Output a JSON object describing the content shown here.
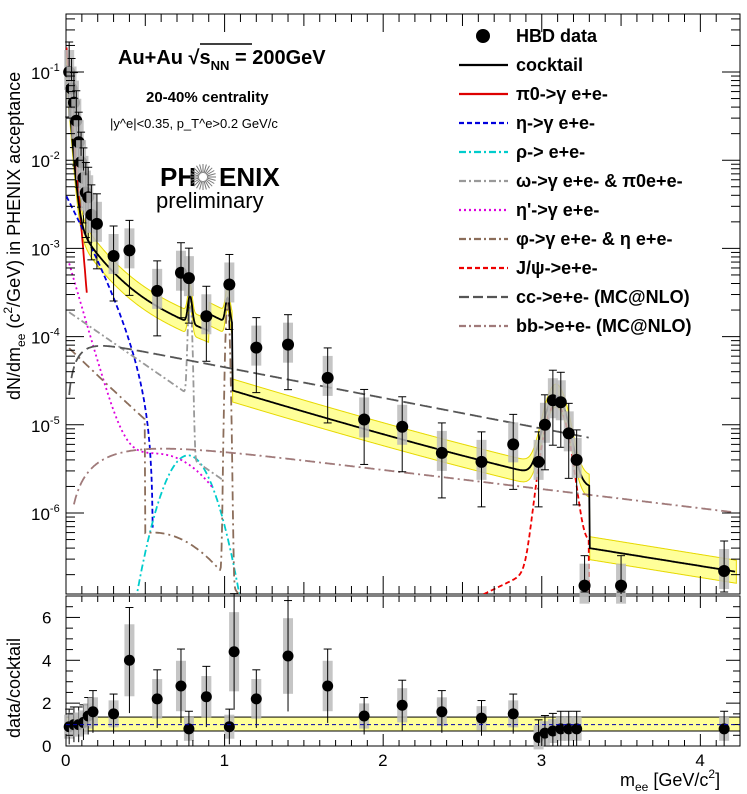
{
  "chart_data": [
    {
      "type": "scatter",
      "panel": "main",
      "yscale": "log",
      "xlabel": "m_ee [GeV/c^2]",
      "ylabel": "dN/dm_ee (c^2/GeV) in PHENIX acceptance",
      "xlim": [
        0,
        4.25
      ],
      "ylim": [
        1.5e-07,
        0.3
      ],
      "header": {
        "system_prefix": "Au+Au",
        "system_sqrt": "s",
        "system_sub": "NN",
        "system_energy": "= 200GeV",
        "centrality": "20-40% centrality",
        "acceptance": "|y^e|<0.35, p_T^e>0.2 GeV/c",
        "logo_left": "PH",
        "logo_right": "ENIX",
        "logo_sub": "preliminary"
      },
      "x_ticks": [
        "0",
        "1",
        "2",
        "3",
        "4"
      ],
      "y_ticks": [
        "10^-1",
        "10^-2",
        "10^-3",
        "10^-4",
        "10^-5",
        "10^-6"
      ],
      "legend": [
        {
          "name": "HBD data",
          "style": "marker",
          "color": "#000000"
        },
        {
          "name": "cocktail",
          "style": "solid",
          "color": "#000000"
        },
        {
          "name": "π0->γ e+e-",
          "style": "solid",
          "color": "#dd0000"
        },
        {
          "name": "η->γ e+e-",
          "style": "dash",
          "color": "#0000dd"
        },
        {
          "name": "ρ-> e+e-",
          "style": "dashdot",
          "color": "#00cccc"
        },
        {
          "name": "ω->γ e+e- & π0e+e-",
          "style": "dashdot",
          "color": "#999999"
        },
        {
          "name": "η'->γ e+e-",
          "style": "dot",
          "color": "#dd00dd"
        },
        {
          "name": "φ->γ e+e- & η e+e-",
          "style": "dashdot",
          "color": "#8b6d5a"
        },
        {
          "name": "J/ψ->e+e-",
          "style": "dash",
          "color": "#ee0000"
        },
        {
          "name": "cc->e+e- (MC@NLO)",
          "style": "longdash",
          "color": "#555555"
        },
        {
          "name": "bb->e+e- (MC@NLO)",
          "style": "dashdot",
          "color": "#a07a7a"
        }
      ],
      "data_points": [
        {
          "x": 0.02,
          "y": 0.1
        },
        {
          "x": 0.035,
          "y": 0.065
        },
        {
          "x": 0.05,
          "y": 0.045
        },
        {
          "x": 0.065,
          "y": 0.028
        },
        {
          "x": 0.08,
          "y": 0.016
        },
        {
          "x": 0.095,
          "y": 0.0095
        },
        {
          "x": 0.11,
          "y": 0.0063
        },
        {
          "x": 0.125,
          "y": 0.0043
        },
        {
          "x": 0.14,
          "y": 0.0038
        },
        {
          "x": 0.16,
          "y": 0.0024
        },
        {
          "x": 0.195,
          "y": 0.0019
        },
        {
          "x": 0.3,
          "y": 0.00082
        },
        {
          "x": 0.4,
          "y": 0.00095
        },
        {
          "x": 0.575,
          "y": 0.00033
        },
        {
          "x": 0.725,
          "y": 0.00053
        },
        {
          "x": 0.775,
          "y": 0.00046
        },
        {
          "x": 0.885,
          "y": 0.00017
        },
        {
          "x": 1.03,
          "y": 0.00039
        },
        {
          "x": 1.2,
          "y": 7.5e-05
        },
        {
          "x": 1.4,
          "y": 8.1e-05
        },
        {
          "x": 1.65,
          "y": 3.4e-05
        },
        {
          "x": 1.88,
          "y": 1.15e-05
        },
        {
          "x": 2.12,
          "y": 9.5e-06
        },
        {
          "x": 2.37,
          "y": 4.8e-06
        },
        {
          "x": 2.62,
          "y": 3.8e-06
        },
        {
          "x": 2.82,
          "y": 6e-06
        },
        {
          "x": 2.98,
          "y": 3.8e-06
        },
        {
          "x": 3.02,
          "y": 1e-05
        },
        {
          "x": 3.07,
          "y": 1.9e-05
        },
        {
          "x": 3.12,
          "y": 1.8e-05
        },
        {
          "x": 3.17,
          "y": 8e-06
        },
        {
          "x": 3.22,
          "y": 4e-06
        },
        {
          "x": 3.27,
          "y": 1.5e-07
        },
        {
          "x": 3.5,
          "y": 1.5e-07
        },
        {
          "x": 4.15,
          "y": 2.2e-07
        }
      ]
    },
    {
      "type": "scatter",
      "panel": "ratio",
      "xlabel": "m_ee [GeV/c^2]",
      "ylabel": "data/cocktail",
      "xlim": [
        0,
        4.25
      ],
      "ylim": [
        0,
        7
      ],
      "y_ticks": [
        "0",
        "2",
        "4",
        "6"
      ],
      "values": [
        {
          "x": 0.02,
          "y": 0.9
        },
        {
          "x": 0.05,
          "y": 1.0
        },
        {
          "x": 0.08,
          "y": 1.0
        },
        {
          "x": 0.11,
          "y": 1.1
        },
        {
          "x": 0.14,
          "y": 1.4
        },
        {
          "x": 0.17,
          "y": 1.6
        },
        {
          "x": 0.3,
          "y": 1.5
        },
        {
          "x": 0.4,
          "y": 4.0
        },
        {
          "x": 0.575,
          "y": 2.2
        },
        {
          "x": 0.725,
          "y": 2.8
        },
        {
          "x": 0.775,
          "y": 0.8
        },
        {
          "x": 0.885,
          "y": 2.3
        },
        {
          "x": 1.03,
          "y": 0.9
        },
        {
          "x": 1.06,
          "y": 4.4
        },
        {
          "x": 1.2,
          "y": 2.2
        },
        {
          "x": 1.4,
          "y": 4.2
        },
        {
          "x": 1.65,
          "y": 2.8
        },
        {
          "x": 1.88,
          "y": 1.4
        },
        {
          "x": 2.12,
          "y": 1.9
        },
        {
          "x": 2.37,
          "y": 1.6
        },
        {
          "x": 2.62,
          "y": 1.3
        },
        {
          "x": 2.82,
          "y": 1.5
        },
        {
          "x": 2.98,
          "y": 0.4
        },
        {
          "x": 3.02,
          "y": 0.6
        },
        {
          "x": 3.07,
          "y": 0.7
        },
        {
          "x": 3.12,
          "y": 0.8
        },
        {
          "x": 3.17,
          "y": 0.8
        },
        {
          "x": 3.22,
          "y": 0.8
        },
        {
          "x": 4.15,
          "y": 0.8
        }
      ]
    }
  ]
}
